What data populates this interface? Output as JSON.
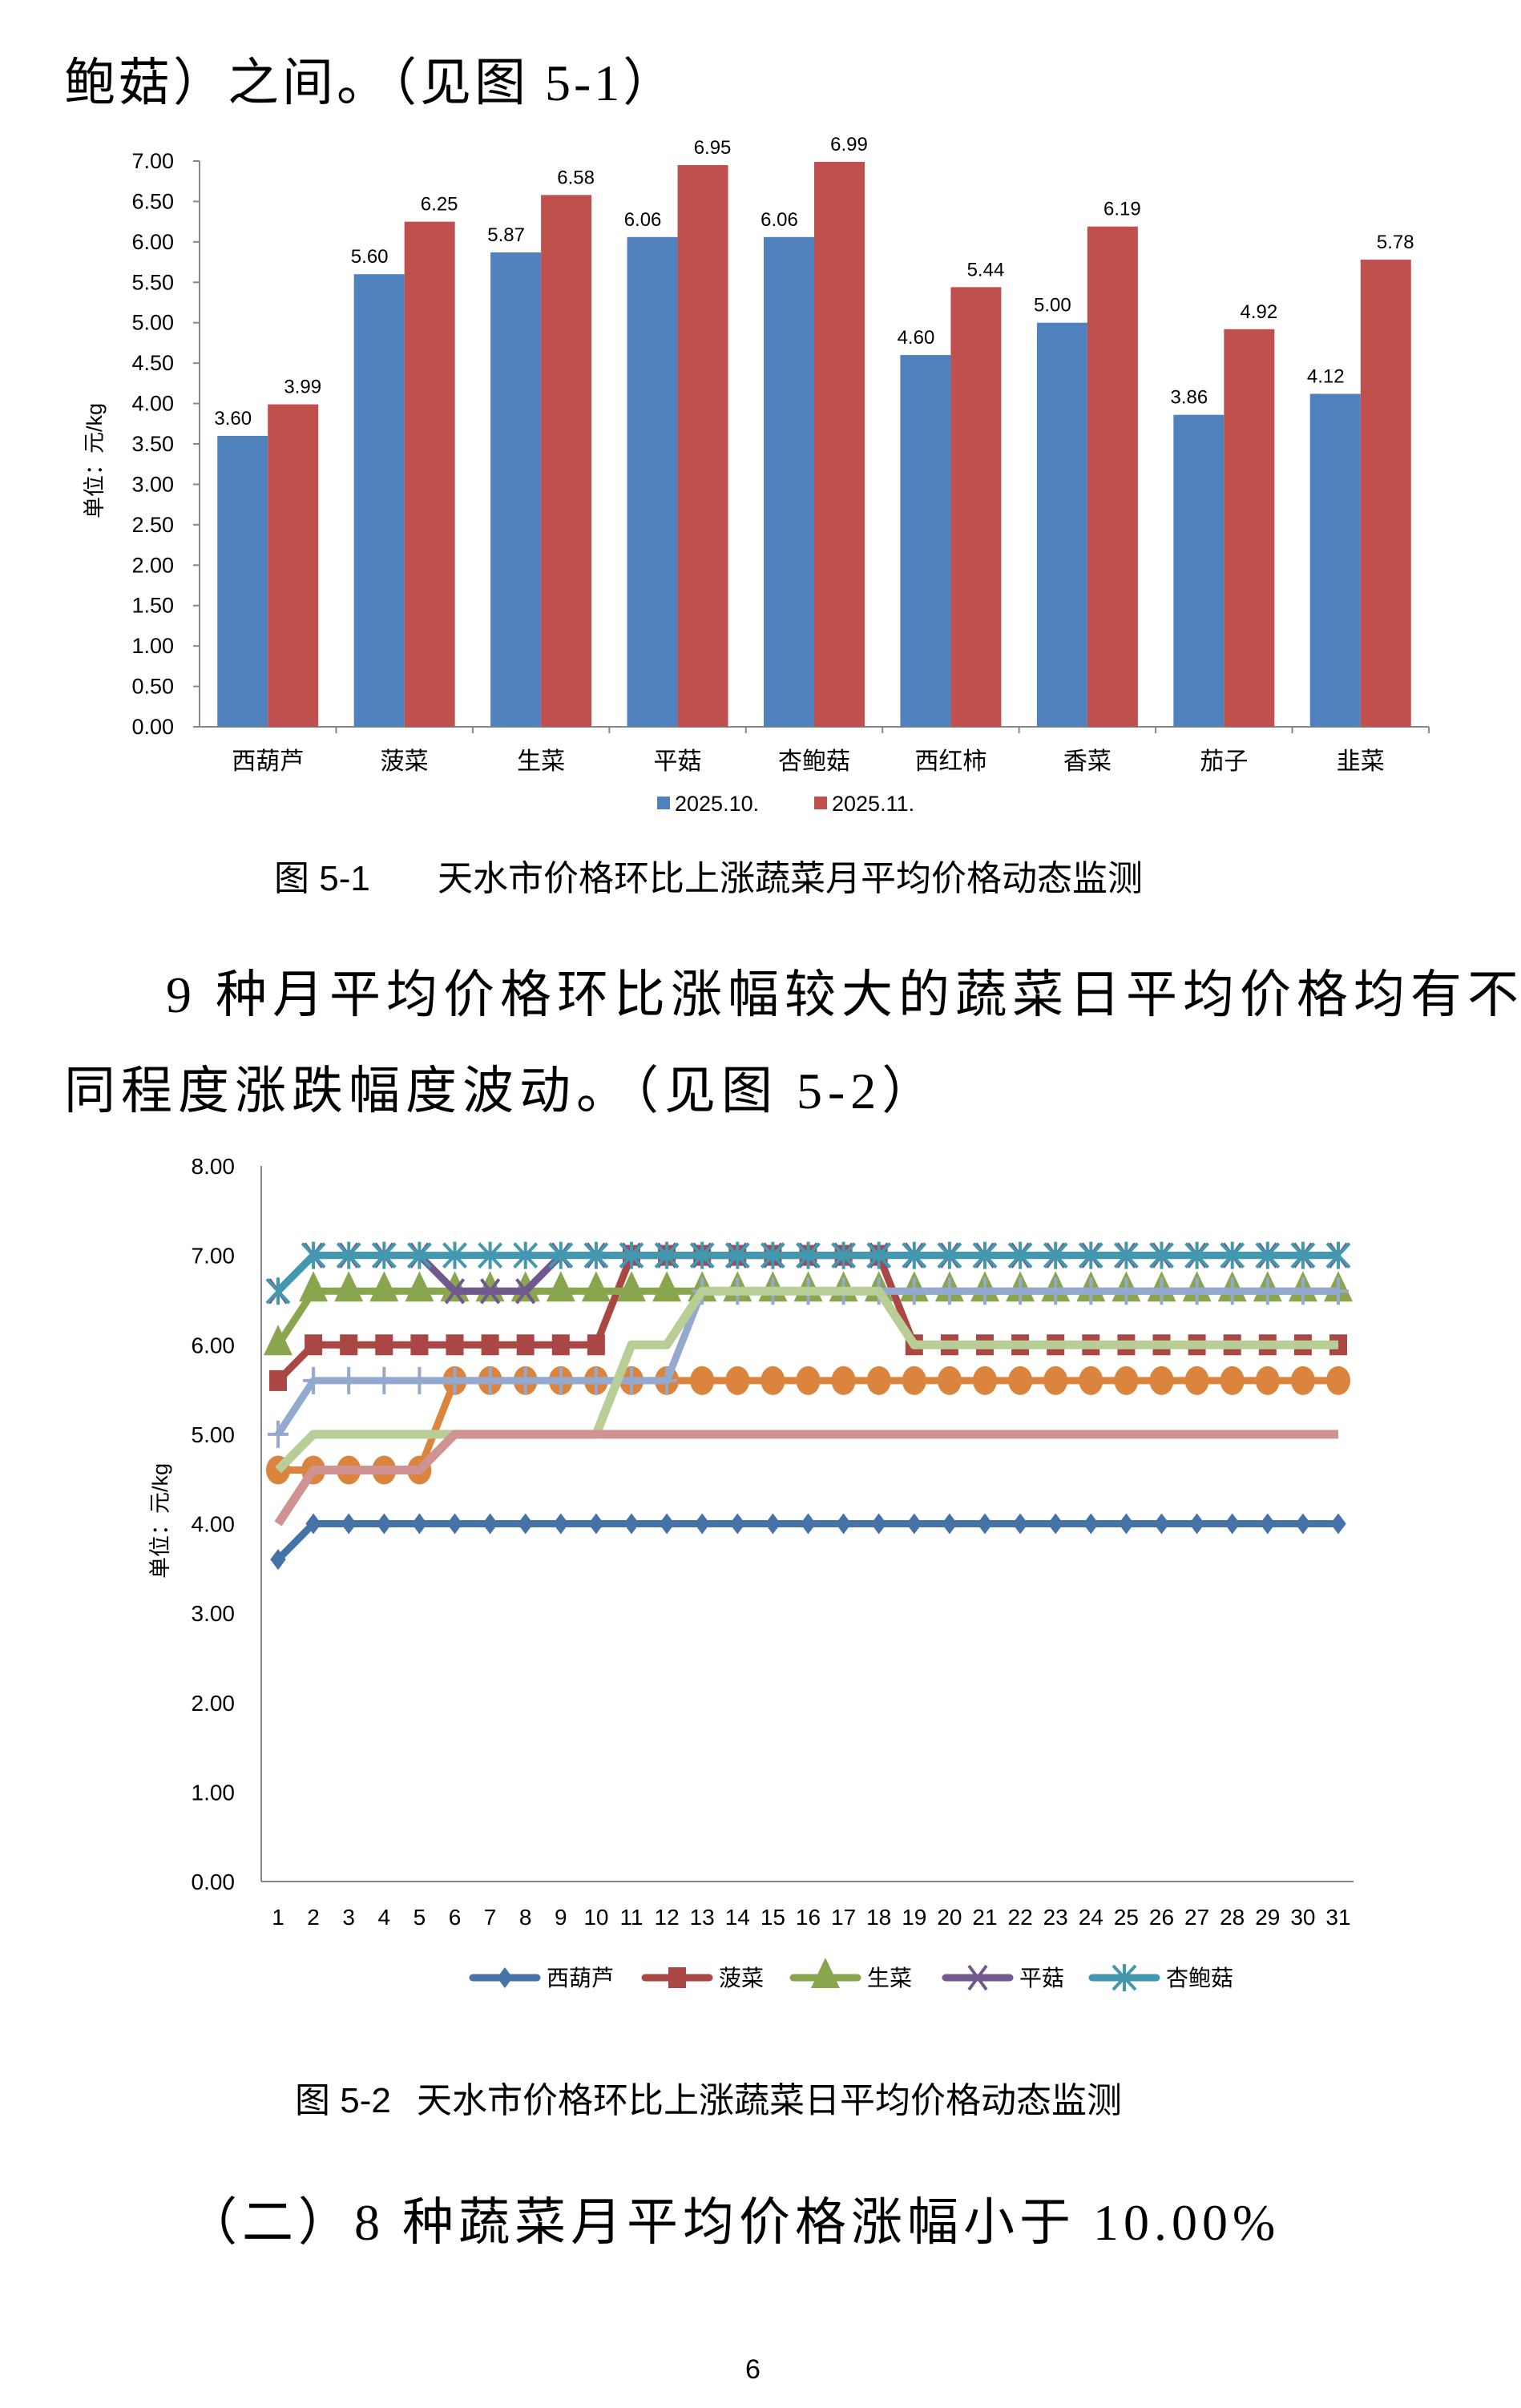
{
  "text": {
    "top_line": "鲍菇）之间。（见图 5-1）",
    "paragraph_lines": [
      "9 种月平均价格环比涨幅较大的蔬菜日平均价格均有不",
      "同程度涨跌幅度波动。（见图 5-2）"
    ],
    "heading": "（二）8 种蔬菜月平均价格涨幅小于 10.00%",
    "page_number": "6"
  },
  "figure1": {
    "label": "图 5-1",
    "caption": "天水市价格环比上涨蔬菜月平均价格动态监测"
  },
  "figure2": {
    "label": "图 5-2",
    "caption": "天水市价格环比上涨蔬菜日平均价格动态监测"
  },
  "chart_data": [
    {
      "type": "bar",
      "title": "",
      "xlabel": "",
      "ylabel": "单位：元/kg",
      "ylim": [
        0,
        7
      ],
      "yticks": [
        "0.00",
        "0.50",
        "1.00",
        "1.50",
        "2.00",
        "2.50",
        "3.00",
        "3.50",
        "4.00",
        "4.50",
        "5.00",
        "5.50",
        "6.00",
        "6.50",
        "7.00"
      ],
      "grid": false,
      "legend": "bottom",
      "categories": [
        "西葫芦",
        "菠菜",
        "生菜",
        "平菇",
        "杏鲍菇",
        "西红柿",
        "香菜",
        "茄子",
        "韭菜"
      ],
      "series": [
        {
          "name": "2025.10.",
          "color": "#4F81BD",
          "values": [
            3.6,
            5.6,
            5.87,
            6.06,
            6.06,
            4.6,
            5.0,
            3.86,
            4.12
          ],
          "labels": [
            "3.60",
            "5.60",
            "5.87",
            "6.06",
            "6.06",
            "4.60",
            "5.00",
            "3.86",
            "4.12"
          ]
        },
        {
          "name": "2025.11.",
          "color": "#C0504D",
          "values": [
            3.99,
            6.25,
            6.58,
            6.95,
            6.99,
            5.44,
            6.19,
            4.92,
            5.78
          ],
          "labels": [
            "3.99",
            "6.25",
            "6.58",
            "6.95",
            "6.99",
            "5.44",
            "6.19",
            "4.92",
            "5.78"
          ]
        }
      ]
    },
    {
      "type": "line",
      "title": "",
      "xlabel": "",
      "ylabel": "单位：元/kg",
      "ylim": [
        0,
        8
      ],
      "yticks": [
        "0.00",
        "1.00",
        "2.00",
        "3.00",
        "4.00",
        "5.00",
        "6.00",
        "7.00",
        "8.00"
      ],
      "grid": false,
      "legend": "bottom",
      "x": [
        1,
        2,
        3,
        4,
        5,
        6,
        7,
        8,
        9,
        10,
        11,
        12,
        13,
        14,
        15,
        16,
        17,
        18,
        19,
        20,
        21,
        22,
        23,
        24,
        25,
        26,
        27,
        28,
        29,
        30,
        31
      ],
      "series": [
        {
          "name": "西葫芦",
          "color": "#4572A7",
          "marker": "diamond",
          "values": [
            3.6,
            4,
            4,
            4,
            4,
            4,
            4,
            4,
            4,
            4,
            4,
            4,
            4,
            4,
            4,
            4,
            4,
            4,
            4,
            4,
            4,
            4,
            4,
            4,
            4,
            4,
            4,
            4,
            4,
            4,
            4
          ]
        },
        {
          "name": "菠菜",
          "color": "#AA4643",
          "marker": "square",
          "values": [
            5.6,
            6,
            6,
            6,
            6,
            6,
            6,
            6,
            6,
            6,
            7,
            7,
            7,
            7,
            7,
            7,
            7,
            7,
            6,
            6,
            6,
            6,
            6,
            6,
            6,
            6,
            6,
            6,
            6,
            6,
            6
          ]
        },
        {
          "name": "生菜",
          "color": "#89A54E",
          "marker": "triangle",
          "values": [
            6,
            6.6,
            6.6,
            6.6,
            6.6,
            6.6,
            6.6,
            6.6,
            6.6,
            6.6,
            6.6,
            6.6,
            6.6,
            6.6,
            6.6,
            6.6,
            6.6,
            6.6,
            6.6,
            6.6,
            6.6,
            6.6,
            6.6,
            6.6,
            6.6,
            6.6,
            6.6,
            6.6,
            6.6,
            6.6,
            6.6
          ]
        },
        {
          "name": "平菇",
          "color": "#71588F",
          "marker": "x",
          "values": [
            6.6,
            7,
            7,
            7,
            7,
            6.6,
            6.6,
            6.6,
            7,
            7,
            7,
            7,
            7,
            7,
            7,
            7,
            7,
            7,
            7,
            7,
            7,
            7,
            7,
            7,
            7,
            7,
            7,
            7,
            7,
            7,
            7
          ]
        },
        {
          "name": "杏鲍菇",
          "color": "#4198AF",
          "marker": "asterisk",
          "values": [
            6.6,
            7,
            7,
            7,
            7,
            7,
            7,
            7,
            7,
            7,
            7,
            7,
            7,
            7,
            7,
            7,
            7,
            7,
            7,
            7,
            7,
            7,
            7,
            7,
            7,
            7,
            7,
            7,
            7,
            7,
            7
          ]
        },
        {
          "color": "#DB843D",
          "marker": "circle",
          "values": [
            4.6,
            4.6,
            4.6,
            4.6,
            4.6,
            5.6,
            5.6,
            5.6,
            5.6,
            5.6,
            5.6,
            5.6,
            5.6,
            5.6,
            5.6,
            5.6,
            5.6,
            5.6,
            5.6,
            5.6,
            5.6,
            5.6,
            5.6,
            5.6,
            5.6,
            5.6,
            5.6,
            5.6,
            5.6,
            5.6,
            5.6
          ]
        },
        {
          "color": "#93A9CF",
          "marker": "plus",
          "values": [
            5,
            5.6,
            5.6,
            5.6,
            5.6,
            5.6,
            5.6,
            5.6,
            5.6,
            5.6,
            5.6,
            5.6,
            6.6,
            6.6,
            6.6,
            6.6,
            6.6,
            6.6,
            6.6,
            6.6,
            6.6,
            6.6,
            6.6,
            6.6,
            6.6,
            6.6,
            6.6,
            6.6,
            6.6,
            6.6,
            6.6
          ]
        },
        {
          "color": "#B9CD96",
          "marker": "none",
          "values": [
            4.6,
            5,
            5,
            5,
            5,
            5,
            5,
            5,
            5,
            5,
            6,
            6,
            6.6,
            6.6,
            6.6,
            6.6,
            6.6,
            6.6,
            6,
            6,
            6,
            6,
            6,
            6,
            6,
            6,
            6,
            6,
            6,
            6,
            6
          ]
        },
        {
          "color": "#D09392",
          "marker": "none",
          "values": [
            4,
            4.6,
            4.6,
            4.6,
            4.6,
            5,
            5,
            5,
            5,
            5,
            5,
            5,
            5,
            5,
            5,
            5,
            5,
            5,
            5,
            5,
            5,
            5,
            5,
            5,
            5,
            5,
            5,
            5,
            5,
            5,
            5
          ]
        }
      ]
    }
  ]
}
